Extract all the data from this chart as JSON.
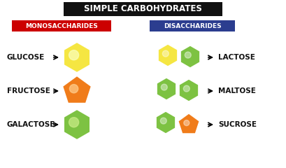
{
  "title": "SIMPLE CARBOHYDRATES",
  "title_bg": "#111111",
  "title_color": "#ffffff",
  "mono_label": "MONOSACCHARIDES",
  "mono_bg": "#cc0000",
  "di_label": "DISACCHARIDES",
  "di_bg": "#2b3d8f",
  "label_color": "#ffffff",
  "monosaccharides": [
    "GLUCOSE",
    "FRUCTOSE",
    "GALACTOSE"
  ],
  "disaccharides": [
    "LACTOSE",
    "MALTOSE",
    "SUCROSE"
  ],
  "background": "#ffffff",
  "text_color": "#111111",
  "glucose_color": "#f5e642",
  "glucose_highlight": "#faffc0",
  "fructose_color": "#f07c1a",
  "galactose_color": "#7dc242",
  "green_color": "#7dc242",
  "yellow_color": "#f5e642"
}
